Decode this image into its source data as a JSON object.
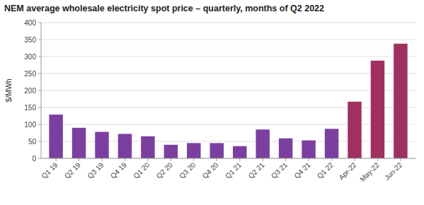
{
  "chart_data": {
    "type": "bar",
    "title": "NEM average wholesale electricity spot price – quarterly, months of Q2 2022",
    "ylabel": "$/MWh",
    "categories": [
      "Q1 19",
      "Q2 19",
      "Q3 19",
      "Q4 19",
      "Q1 20",
      "Q2 20",
      "Q3 20",
      "Q4 20",
      "Q1 21",
      "Q2 21",
      "Q3 21",
      "Q4 21",
      "Q1 22",
      "Apr-22",
      "May-22",
      "Jun-22"
    ],
    "values": [
      129,
      90,
      78,
      72,
      65,
      40,
      45,
      45,
      36,
      85,
      59,
      53,
      87,
      167,
      288,
      338
    ],
    "colors": [
      "#7b3fa0",
      "#7b3fa0",
      "#7b3fa0",
      "#7b3fa0",
      "#7b3fa0",
      "#7b3fa0",
      "#7b3fa0",
      "#7b3fa0",
      "#7b3fa0",
      "#7b3fa0",
      "#7b3fa0",
      "#7b3fa0",
      "#7b3fa0",
      "#a03060",
      "#a03060",
      "#a03060"
    ],
    "ylim": [
      0,
      400
    ],
    "yticks": [
      0,
      50,
      100,
      150,
      200,
      250,
      300,
      350,
      400
    ],
    "grid": true
  }
}
